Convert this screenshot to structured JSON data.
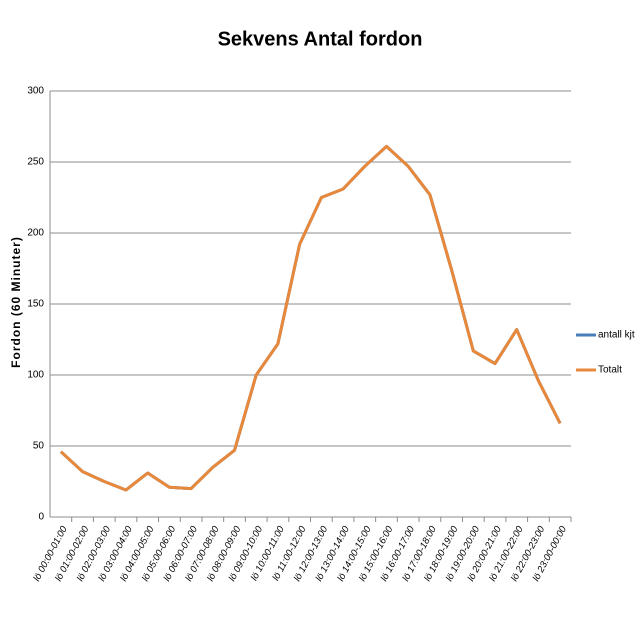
{
  "chart_data": {
    "type": "line",
    "title": "Sekvens Antal fordon",
    "y_label": "Fordon (60 Minuter)",
    "categories": [
      "lö 00:00-01:00",
      "lö 01:00-02:00",
      "lö 02:00-03:00",
      "lö 03:00-04:00",
      "lö 04:00-05:00",
      "lö 05:00-06:00",
      "lö 06:00-07:00",
      "lö 07:00-08:00",
      "lö 08:00-09:00",
      "lö 09:00-10:00",
      "lö 10:00-11:00",
      "lö 11:00-12:00",
      "lö 12:00-13:00",
      "lö 13:00-14:00",
      "lö 14:00-15:00",
      "lö 15:00-16:00",
      "lö 16:00-17:00",
      "lö 17:00-18:00",
      "lö 18:00-19:00",
      "lö 19:00-20:00",
      "lö 20:00-21:00",
      "lö 21:00-22:00",
      "lö 22:00-23:00",
      "lö 23:00-00:00"
    ],
    "series": [
      {
        "name": "antall kjt",
        "color": "#4a7ebb",
        "values": [
          46,
          32,
          25,
          19,
          31,
          21,
          20,
          35,
          47,
          100,
          122,
          192,
          225,
          231,
          247,
          261,
          247,
          227,
          174,
          117,
          108,
          132,
          96,
          66
        ]
      },
      {
        "name": "Totalt",
        "color": "#e8883a",
        "values": [
          46,
          32,
          25,
          19,
          31,
          21,
          20,
          35,
          47,
          100,
          122,
          192,
          225,
          231,
          247,
          261,
          247,
          227,
          174,
          117,
          108,
          132,
          96,
          66
        ]
      }
    ],
    "ylim": [
      0,
      300
    ],
    "yticks": [
      0,
      50,
      100,
      150,
      200,
      250,
      300
    ],
    "grid": true,
    "legend": "right"
  }
}
